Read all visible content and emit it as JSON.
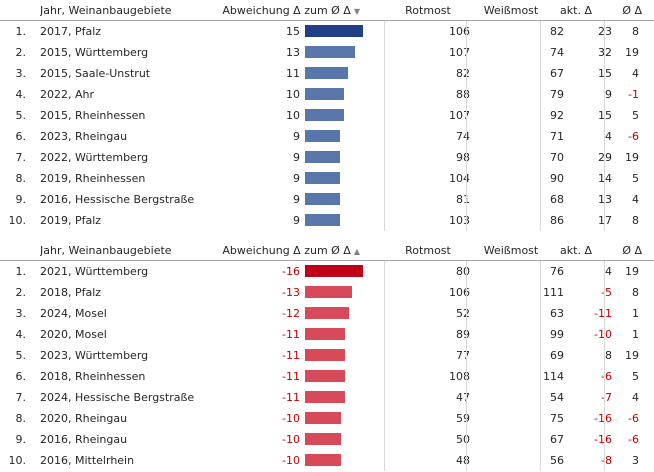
{
  "headers": {
    "name": "Jahr, Weinanbaugebiete",
    "deviation": "Abweichung Δ zum Ø Δ",
    "rotmost": "Rotmost",
    "weissmost": "Weißmost",
    "akt": "akt. Δ",
    "avg": "Ø Δ",
    "sort_desc_icon": "▼",
    "sort_asc_icon": "▲"
  },
  "colors": {
    "bar_top_dark": "#1f3f86",
    "bar_top": "#5876a9",
    "bar_bottom_dark": "#c00018",
    "bar_bottom": "#d64a5a",
    "negative_text": "#c00000"
  },
  "top_table": [
    {
      "rank": "1.",
      "name": "2017, Pfalz",
      "dev": "15",
      "dev_val": 15,
      "rot": "106",
      "weiss": "82",
      "akt": "23",
      "avg": "8"
    },
    {
      "rank": "2.",
      "name": "2015, Württemberg",
      "dev": "13",
      "dev_val": 13,
      "rot": "107",
      "weiss": "74",
      "akt": "32",
      "avg": "19"
    },
    {
      "rank": "3.",
      "name": "2015, Saale-Unstrut",
      "dev": "11",
      "dev_val": 11,
      "rot": "82",
      "weiss": "67",
      "akt": "15",
      "avg": "4"
    },
    {
      "rank": "4.",
      "name": "2022, Ahr",
      "dev": "10",
      "dev_val": 10,
      "rot": "88",
      "weiss": "79",
      "akt": "9",
      "avg": "-1"
    },
    {
      "rank": "5.",
      "name": "2015, Rheinhessen",
      "dev": "10",
      "dev_val": 10,
      "rot": "107",
      "weiss": "92",
      "akt": "15",
      "avg": "5"
    },
    {
      "rank": "6.",
      "name": "2023, Rheingau",
      "dev": "9",
      "dev_val": 9,
      "rot": "74",
      "weiss": "71",
      "akt": "4",
      "avg": "-6"
    },
    {
      "rank": "7.",
      "name": "2022, Württemberg",
      "dev": "9",
      "dev_val": 9,
      "rot": "98",
      "weiss": "70",
      "akt": "29",
      "avg": "19"
    },
    {
      "rank": "8.",
      "name": "2019, Rheinhessen",
      "dev": "9",
      "dev_val": 9,
      "rot": "104",
      "weiss": "90",
      "akt": "14",
      "avg": "5"
    },
    {
      "rank": "9.",
      "name": "2016, Hessische Bergstraße",
      "dev": "9",
      "dev_val": 9,
      "rot": "81",
      "weiss": "68",
      "akt": "13",
      "avg": "4"
    },
    {
      "rank": "10.",
      "name": "2019, Pfalz",
      "dev": "9",
      "dev_val": 9,
      "rot": "103",
      "weiss": "86",
      "akt": "17",
      "avg": "8"
    }
  ],
  "bottom_table": [
    {
      "rank": "1.",
      "name": "2021, Württemberg",
      "dev": "-16",
      "dev_val": -16,
      "rot": "80",
      "weiss": "76",
      "akt": "4",
      "avg": "19"
    },
    {
      "rank": "2.",
      "name": "2018, Pfalz",
      "dev": "-13",
      "dev_val": -13,
      "rot": "106",
      "weiss": "111",
      "akt": "-5",
      "avg": "8"
    },
    {
      "rank": "3.",
      "name": "2024, Mosel",
      "dev": "-12",
      "dev_val": -12,
      "rot": "52",
      "weiss": "63",
      "akt": "-11",
      "avg": "1"
    },
    {
      "rank": "4.",
      "name": "2020, Mosel",
      "dev": "-11",
      "dev_val": -11,
      "rot": "89",
      "weiss": "99",
      "akt": "-10",
      "avg": "1"
    },
    {
      "rank": "5.",
      "name": "2023, Württemberg",
      "dev": "-11",
      "dev_val": -11,
      "rot": "77",
      "weiss": "69",
      "akt": "8",
      "avg": "19"
    },
    {
      "rank": "6.",
      "name": "2018, Rheinhessen",
      "dev": "-11",
      "dev_val": -11,
      "rot": "108",
      "weiss": "114",
      "akt": "-6",
      "avg": "5"
    },
    {
      "rank": "7.",
      "name": "2024, Hessische Bergstraße",
      "dev": "-11",
      "dev_val": -11,
      "rot": "47",
      "weiss": "54",
      "akt": "-7",
      "avg": "4"
    },
    {
      "rank": "8.",
      "name": "2020, Rheingau",
      "dev": "-10",
      "dev_val": -10,
      "rot": "59",
      "weiss": "75",
      "akt": "-16",
      "avg": "-6"
    },
    {
      "rank": "9.",
      "name": "2016, Rheingau",
      "dev": "-10",
      "dev_val": -10,
      "rot": "50",
      "weiss": "67",
      "akt": "-16",
      "avg": "-6"
    },
    {
      "rank": "10.",
      "name": "2016, Mittelrhein",
      "dev": "-10",
      "dev_val": -10,
      "rot": "48",
      "weiss": "56",
      "akt": "-8",
      "avg": "3"
    }
  ]
}
